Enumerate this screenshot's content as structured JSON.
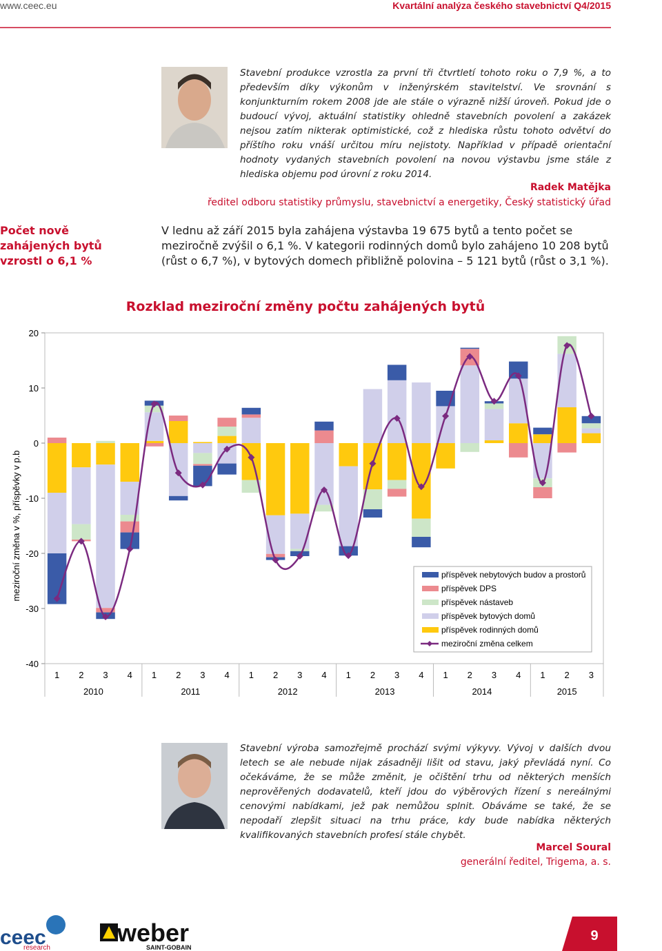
{
  "header": {
    "url": "www.ceec.eu",
    "title": "Kvartální analýza českého stavebnictví Q4/2015"
  },
  "quote1": {
    "text": "Stavební produkce vzrostla za první tři čtvrtletí tohoto roku o 7,9 %, a to především díky výkonům v inženýrském stavitelství. Ve srovnání s konjunkturním rokem 2008 jde ale stále o výrazně nižší úroveň. Pokud jde o budoucí vývoj, aktuální statistiky ohledně stavebních povolení a zakázek nejsou zatím nikterak optimistické, což z hlediska růstu tohoto odvětví do příštího roku vnáší určitou míru nejistoty. Například v případě orientační hodnoty vydaných stavebních povolení na novou výstavbu jsme stále z hlediska objemu pod úrovní z roku 2014.",
    "author": "Radek Matějka",
    "role": "ředitel odboru statistiky průmyslu, stavebnictví a energetiky, Český statistický úřad"
  },
  "sidebar": {
    "heading": "Počet nově zahájených bytů vzrostl o 6,1 %"
  },
  "paragraph": "V lednu až září 2015 byla zahájena výstavba 19 675 bytů a tento počet se meziročně zvýšil o 6,1 %. V kategorii rodinných domů bylo zahájeno 10 208 bytů (růst o 6,7 %), v bytových domech přibližně polovina – 5 121 bytů (růst o 3,1 %).",
  "chart_data": {
    "type": "bar",
    "stacked": true,
    "title": "Rozklad meziroční změny počtu zahájených bytů",
    "y_label": "meziroční změna v %, příspěvky v p.b",
    "categories": [
      "1",
      "2",
      "3",
      "4",
      "1",
      "2",
      "3",
      "4",
      "1",
      "2",
      "3",
      "4",
      "1",
      "2",
      "3",
      "4",
      "1",
      "2",
      "3",
      "4",
      "1",
      "2",
      "3"
    ],
    "category_groups": [
      "2010",
      "2011",
      "2012",
      "2013",
      "2014",
      "2015"
    ],
    "ylim": [
      -40,
      20
    ],
    "yticks": [
      20,
      10,
      0,
      -10,
      -20,
      -30,
      -40
    ],
    "legend": "lower right",
    "series": [
      {
        "name": "příspěvek nebytových budov a prostorů",
        "color": "#3a5ba8",
        "values": [
          -9.2,
          0,
          -1.2,
          -3,
          0.9,
          -0.8,
          -3.7,
          -2,
          1.2,
          -0.5,
          -0.9,
          1.6,
          -1.7,
          -1.5,
          2.8,
          -1.9,
          2.8,
          0.2,
          0.4,
          3.1,
          1.2,
          0,
          1.3
        ]
      },
      {
        "name": "příspěvek DPS",
        "color": "#ec8a8f",
        "values": [
          1,
          -0.3,
          -0.8,
          -2,
          -0.6,
          1,
          -0.3,
          1.6,
          0.6,
          -0.6,
          0,
          2.3,
          0,
          0,
          -1.4,
          0,
          0,
          3,
          0,
          -2.6,
          -2,
          -1.7,
          0
        ]
      },
      {
        "name": "příspěvek nástaveb",
        "color": "#cde6c8",
        "values": [
          0,
          -2.8,
          0.4,
          -1.2,
          1.2,
          0,
          -2,
          1.7,
          -2.3,
          0,
          -0.4,
          -1.2,
          0,
          -3.6,
          -1.6,
          -3.3,
          0,
          -1.6,
          1,
          0,
          -1.6,
          3.2,
          0.9
        ]
      },
      {
        "name": "příspěvek bytových domů",
        "color": "#d0cfea",
        "values": [
          -11,
          -10.3,
          -26,
          -6,
          5.2,
          -9.6,
          -1.8,
          -3.7,
          4.6,
          -7,
          -6.4,
          -11.2,
          -14.5,
          9.8,
          11.4,
          11,
          6.7,
          14.1,
          5.7,
          8.1,
          -6.4,
          9.7,
          0.9
        ]
      },
      {
        "name": "příspěvek rodinných domů",
        "color": "#ffc90e",
        "values": [
          -9,
          -4.4,
          -3.9,
          -7,
          0.4,
          4,
          0.2,
          1.3,
          -6.7,
          -13.1,
          -12.8,
          0,
          -4.2,
          -8.4,
          -6.7,
          -13.7,
          -4.6,
          0,
          0.5,
          3.6,
          1.6,
          6.5,
          1.8
        ]
      },
      {
        "name": "meziroční změna celkem",
        "color": "#7b2a80",
        "type": "line",
        "values": [
          -28.2,
          -17.8,
          -31.5,
          -19.2,
          7.1,
          -5.4,
          -7.6,
          -1.1,
          -2.6,
          -21.2,
          -20.5,
          -8.5,
          -20.4,
          -3.7,
          4.5,
          -7.9,
          4.9,
          15.7,
          7.6,
          12.2,
          -7.2,
          17.7,
          4.9
        ]
      }
    ]
  },
  "quote2": {
    "text": "Stavební výroba samozřejmě prochází svými výkyvy. Vývoj v dalších dvou letech se ale nebude nijak zásadněji lišit od stavu, jaký převládá nyní. Co očekáváme, že se může změnit, je očištění trhu od některých menších neprověřených dodavatelů, kteří jdou do výběrových řízení s nereálnými cenovými nabídkami, jež pak nemůžou splnit. Obáváme se také, že se nepodaří zlepšit situaci na trhu práce, kdy bude nabídka některých kvalifikovaných stavebních profesí stále chybět.",
    "author": "Marcel Soural",
    "role": "generální ředitel, Trigema, a. s."
  },
  "footer": {
    "logo1": "ceec",
    "logo1_sub": "research",
    "logo2": "weber",
    "logo2_sub": "SAINT-GOBAIN",
    "page": "9"
  }
}
